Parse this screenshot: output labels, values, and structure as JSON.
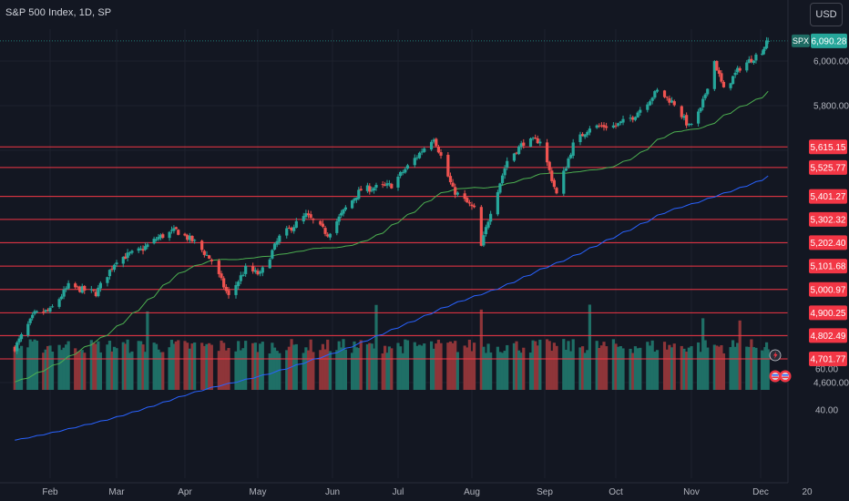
{
  "header": {
    "title": "S&P 500 Index, 1D, SP"
  },
  "currency_button": {
    "label": "USD"
  },
  "colors": {
    "background": "#131722",
    "up_candle": "#26a69a",
    "down_candle": "#ef5350",
    "up_volume": "#1f6f66",
    "down_volume": "#8e3539",
    "sma_50": "#4caf50",
    "sma_200": "#2962ff",
    "level_line": "#f23645",
    "price_line": "#26a69a"
  },
  "chart_data": {
    "type": "candlestick",
    "symbol": "SPX",
    "timeframe": "1D",
    "last_price": 6090.28,
    "last_price_label": "6,090.28",
    "y_ticks": [
      6000,
      5800,
      4600
    ],
    "y_tick_labels": [
      "6,000.00",
      "5,800.00",
      "4,600.00"
    ],
    "volume_ticks": [
      60,
      40
    ],
    "volume_tick_labels": [
      "60.00",
      "40.00"
    ],
    "x_tick_labels": [
      "Feb",
      "Mar",
      "Apr",
      "May",
      "Jun",
      "Jul",
      "Aug",
      "Sep",
      "Oct",
      "Nov",
      "Dec",
      "20"
    ],
    "x_tick_months": [
      2,
      3,
      4,
      5,
      6,
      7,
      8,
      9,
      10,
      11,
      12,
      13
    ],
    "horizontal_levels": [
      {
        "value": 5615.15,
        "label": "5,615.15"
      },
      {
        "value": 5525.77,
        "label": "5,525.77"
      },
      {
        "value": 5401.27,
        "label": "5,401.27"
      },
      {
        "value": 5302.32,
        "label": "5,302.32"
      },
      {
        "value": 5202.4,
        "label": "5,202.40"
      },
      {
        "value": 5101.68,
        "label": "5,101.68"
      },
      {
        "value": 5000.97,
        "label": "5,000.97"
      },
      {
        "value": 4900.25,
        "label": "4,900.25"
      },
      {
        "value": 4802.49,
        "label": "4,802.49"
      },
      {
        "value": 4701.77,
        "label": "4,701.77"
      }
    ],
    "close_waypoints": [
      [
        "2024-01-16",
        4750
      ],
      [
        "2024-01-25",
        4895
      ],
      [
        "2024-02-01",
        4910
      ],
      [
        "2024-02-09",
        5015
      ],
      [
        "2024-02-21",
        4985
      ],
      [
        "2024-03-01",
        5130
      ],
      [
        "2024-03-12",
        5170
      ],
      [
        "2024-03-20",
        5225
      ],
      [
        "2024-03-28",
        5255
      ],
      [
        "2024-04-05",
        5205
      ],
      [
        "2024-04-12",
        5125
      ],
      [
        "2024-04-19",
        4970
      ],
      [
        "2024-04-26",
        5090
      ],
      [
        "2024-05-02",
        5065
      ],
      [
        "2024-05-10",
        5225
      ],
      [
        "2024-05-21",
        5320
      ],
      [
        "2024-05-30",
        5240
      ],
      [
        "2024-06-07",
        5350
      ],
      [
        "2024-06-14",
        5430
      ],
      [
        "2024-06-28",
        5450
      ],
      [
        "2024-07-09",
        5575
      ],
      [
        "2024-07-16",
        5660
      ],
      [
        "2024-07-24",
        5430
      ],
      [
        "2024-08-02",
        5345
      ],
      [
        "2024-08-05",
        5185
      ],
      [
        "2024-08-09",
        5340
      ],
      [
        "2024-08-16",
        5555
      ],
      [
        "2024-08-23",
        5635
      ],
      [
        "2024-08-30",
        5645
      ],
      [
        "2024-09-06",
        5410
      ],
      [
        "2024-09-13",
        5625
      ],
      [
        "2024-09-20",
        5705
      ],
      [
        "2024-10-01",
        5710
      ],
      [
        "2024-10-08",
        5750
      ],
      [
        "2024-10-18",
        5865
      ],
      [
        "2024-10-25",
        5810
      ],
      [
        "2024-10-31",
        5705
      ],
      [
        "2024-11-05",
        5780
      ],
      [
        "2024-11-11",
        6000
      ],
      [
        "2024-11-15",
        5870
      ],
      [
        "2024-11-22",
        5970
      ],
      [
        "2024-12-02",
        6047
      ],
      [
        "2024-12-06",
        6090
      ]
    ],
    "volume_spikes": [
      "2024-03-15",
      "2024-06-21",
      "2024-08-05",
      "2024-09-20",
      "2024-11-06",
      "2024-11-22"
    ]
  }
}
